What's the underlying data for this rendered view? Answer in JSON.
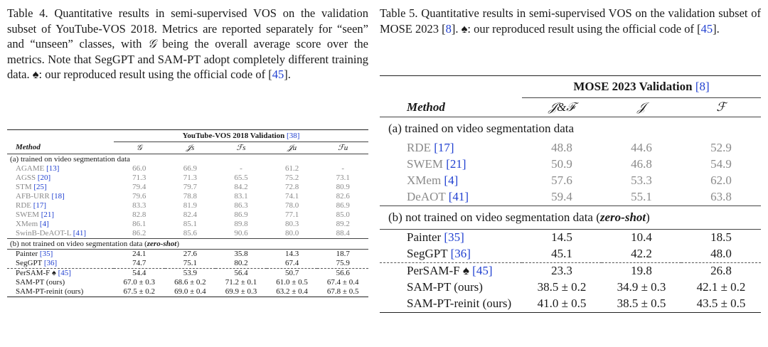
{
  "table4": {
    "caption": {
      "label": "Table 4.",
      "text_a": " Quantitative results in semi-supervised VOS on the validation subset of YouTube-VOS 2018. Metrics are reported separately for “seen” and “unseen” classes, with ",
      "g_symbol": "𝒢",
      "text_b": " being the overall average score over the metrics. Note that SegGPT and SAM-PT adopt completely different training data. ♠: our reproduced result using the official code of [",
      "cite": "45",
      "text_c": "]."
    },
    "group_header": "YouTube-VOS 2018 Validation",
    "group_cite": "[38]",
    "method_header": "Method",
    "metric_headers": [
      "𝒢",
      "𝒥s",
      "ℱs",
      "𝒥u",
      "ℱu"
    ],
    "section_a": "(a) trained on video segmentation data",
    "section_b_prefix": "(b) not trained on video segmentation data (",
    "section_b_em": "zero-shot",
    "section_b_suffix": ")",
    "rows_a": [
      {
        "name": "AGAME ",
        "cite": "[13]",
        "v": [
          "66.0",
          "66.9",
          "-",
          "61.2",
          "-"
        ]
      },
      {
        "name": "AGSS ",
        "cite": "[20]",
        "v": [
          "71.3",
          "71.3",
          "65.5",
          "75.2",
          "73.1"
        ]
      },
      {
        "name": "STM ",
        "cite": "[25]",
        "v": [
          "79.4",
          "79.7",
          "84.2",
          "72.8",
          "80.9"
        ]
      },
      {
        "name": "AFB-URR ",
        "cite": "[18]",
        "v": [
          "79.6",
          "78.8",
          "83.1",
          "74.1",
          "82.6"
        ]
      },
      {
        "name": "RDE ",
        "cite": "[17]",
        "v": [
          "83.3",
          "81.9",
          "86.3",
          "78.0",
          "86.9"
        ]
      },
      {
        "name": "SWEM ",
        "cite": "[21]",
        "v": [
          "82.8",
          "82.4",
          "86.9",
          "77.1",
          "85.0"
        ]
      },
      {
        "name": "XMem ",
        "cite": "[4]",
        "v": [
          "86.1",
          "85.1",
          "89.8",
          "80.3",
          "89.2"
        ]
      },
      {
        "name": "SwinB-DeAOT-L ",
        "cite": "[41]",
        "v": [
          "86.2",
          "85.6",
          "90.6",
          "80.0",
          "88.4"
        ]
      }
    ],
    "rows_b": [
      {
        "name": "Painter ",
        "cite": "[35]",
        "v": [
          "24.1",
          "27.6",
          "35.8",
          "14.3",
          "18.7"
        ]
      },
      {
        "name": "SegGPT ",
        "cite": "[36]",
        "v": [
          "74.7",
          "75.1",
          "80.2",
          "67.4",
          "75.9"
        ]
      }
    ],
    "rows_c": [
      {
        "name": "PerSAM-F ♠ ",
        "cite": "[45]",
        "v": [
          "54.4",
          "53.9",
          "56.4",
          "50.7",
          "56.6"
        ]
      },
      {
        "name": "SAM-PT (ours)",
        "cite": "",
        "v": [
          "67.0 ± 0.3",
          "68.6 ± 0.2",
          "71.2 ± 0.1",
          "61.0 ± 0.5",
          "67.4 ± 0.4"
        ]
      },
      {
        "name": "SAM-PT-reinit (ours)",
        "cite": "",
        "v": [
          "67.5 ± 0.2",
          "69.0 ± 0.4",
          "69.9 ± 0.3",
          "63.2 ± 0.4",
          "67.8 ± 0.5"
        ]
      }
    ]
  },
  "table5": {
    "caption": {
      "label": "Table 5.",
      "text_a": " Quantitative results in semi-supervised VOS on the validation subset of MOSE 2023 [",
      "cite1": "8",
      "text_b": "]. ♠: our reproduced result using the official code of [",
      "cite2": "45",
      "text_c": "]."
    },
    "group_header": "MOSE 2023 Validation ",
    "group_cite": "[8]",
    "method_header": "Method",
    "metric_headers": [
      "𝒥&ℱ",
      "𝒥",
      "ℱ"
    ],
    "section_a": "(a) trained on video segmentation data",
    "section_b_prefix": "(b) not trained on video segmentation data (",
    "section_b_em": "zero-shot",
    "section_b_suffix": ")",
    "rows_a": [
      {
        "name": "RDE ",
        "cite": "[17]",
        "v": [
          "48.8",
          "44.6",
          "52.9"
        ]
      },
      {
        "name": "SWEM ",
        "cite": "[21]",
        "v": [
          "50.9",
          "46.8",
          "54.9"
        ]
      },
      {
        "name": "XMem ",
        "cite": "[4]",
        "v": [
          "57.6",
          "53.3",
          "62.0"
        ]
      },
      {
        "name": "DeAOT ",
        "cite": "[41]",
        "v": [
          "59.4",
          "55.1",
          "63.8"
        ]
      }
    ],
    "rows_b": [
      {
        "name": "Painter ",
        "cite": "[35]",
        "v": [
          "14.5",
          "10.4",
          "18.5"
        ]
      },
      {
        "name": "SegGPT ",
        "cite": "[36]",
        "v": [
          "45.1",
          "42.2",
          "48.0"
        ]
      }
    ],
    "rows_c": [
      {
        "name": "PerSAM-F ♠ ",
        "cite": "[45]",
        "v": [
          "23.3",
          "19.8",
          "26.8"
        ]
      },
      {
        "name": "SAM-PT (ours)",
        "cite": "",
        "v": [
          "38.5 ± 0.2",
          "34.9 ± 0.3",
          "42.1 ± 0.2"
        ]
      },
      {
        "name": "SAM-PT-reinit (ours)",
        "cite": "",
        "v": [
          "41.0 ± 0.5",
          "38.5 ± 0.5",
          "43.5 ± 0.5"
        ]
      }
    ]
  }
}
